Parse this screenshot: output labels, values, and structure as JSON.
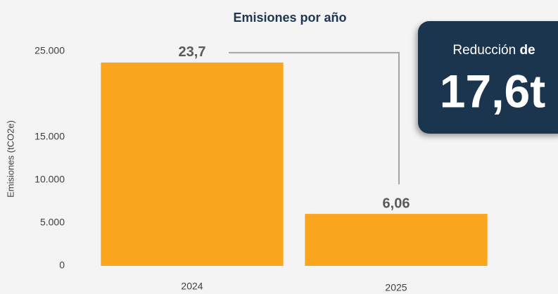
{
  "chart_data": {
    "type": "bar",
    "title": "Emisiones por año",
    "ylabel": "Emisiones (tCO2e)",
    "categories": [
      "2024",
      "2025"
    ],
    "values": [
      23700,
      6060
    ],
    "value_labels": [
      "23,7",
      "6,06"
    ],
    "color": "#f9a61e",
    "ylim": [
      0,
      25000
    ],
    "yticks": [
      0,
      {
        "value": 5000,
        "label": "5.000"
      },
      {
        "value": 10000,
        "label": "10.000"
      },
      {
        "value": 15000,
        "label": "15.000"
      },
      {
        "value": 25000,
        "label": "25.000"
      }
    ],
    "grid": false,
    "callout": {
      "text": "Reducción",
      "emphasis": "de",
      "amount": "17,6t"
    }
  }
}
